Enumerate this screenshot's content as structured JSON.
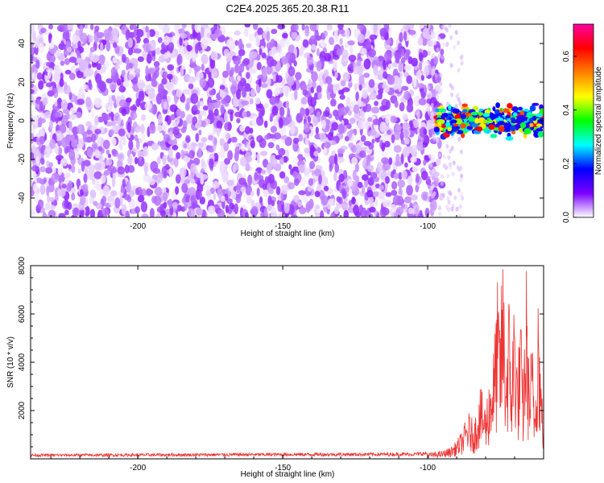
{
  "chart_data": [
    {
      "type": "heatmap",
      "title": "C2E4.2025.365.20.38.R11",
      "xlabel": "Height of straight line (km)",
      "ylabel": "Frequency (Hz)",
      "xlim": [
        -237,
        -60
      ],
      "ylim": [
        -50,
        50
      ],
      "xticks": [
        -200,
        -150,
        -100
      ],
      "yticks": [
        -40,
        -20,
        0,
        20,
        40
      ],
      "colorbar": {
        "label": "Normalized spectral amplitude",
        "range": [
          0,
          0.72
        ],
        "ticks": [
          0.0,
          0.2,
          0.4,
          0.6
        ],
        "colormap": [
          "#ffffff",
          "#7a00ff",
          "#0000ff",
          "#00ffff",
          "#00ff00",
          "#ffff00",
          "#ff8000",
          "#ff0000",
          "#ff00a0"
        ]
      },
      "regions": [
        {
          "name": "noise",
          "x_range": [
            -237,
            -95
          ],
          "freq_range": [
            -50,
            50
          ],
          "amplitude_range": [
            0.0,
            0.08
          ]
        },
        {
          "name": "signal",
          "x_range": [
            -97,
            -60
          ],
          "freq_range": [
            -8,
            8
          ],
          "amplitude_range": [
            0.15,
            0.65
          ]
        }
      ]
    },
    {
      "type": "line",
      "xlabel": "Height of straight line (km)",
      "ylabel": "SNR (10 * v/v)",
      "xlim": [
        -237,
        -60
      ],
      "ylim": [
        0,
        8000
      ],
      "xticks": [
        -200,
        -150,
        -100
      ],
      "yticks": [
        2000,
        4000,
        6000,
        8000
      ],
      "color": "#ee3333",
      "x": [
        -237,
        -200,
        -150,
        -105,
        -100,
        -95,
        -92,
        -90,
        -88,
        -86,
        -84,
        -82,
        -80,
        -78,
        -77,
        -76,
        -75,
        -74,
        -73,
        -72,
        -71,
        -70,
        -69,
        -68,
        -67,
        -66,
        -65,
        -64,
        -63,
        -62,
        -61,
        -60
      ],
      "values": [
        150,
        160,
        180,
        190,
        220,
        300,
        450,
        700,
        1100,
        1800,
        1400,
        2800,
        2100,
        3800,
        4500,
        6800,
        5500,
        8000,
        4200,
        6500,
        3800,
        7200,
        3500,
        5800,
        2900,
        7600,
        3200,
        4800,
        2200,
        7800,
        3600,
        1500
      ]
    }
  ]
}
